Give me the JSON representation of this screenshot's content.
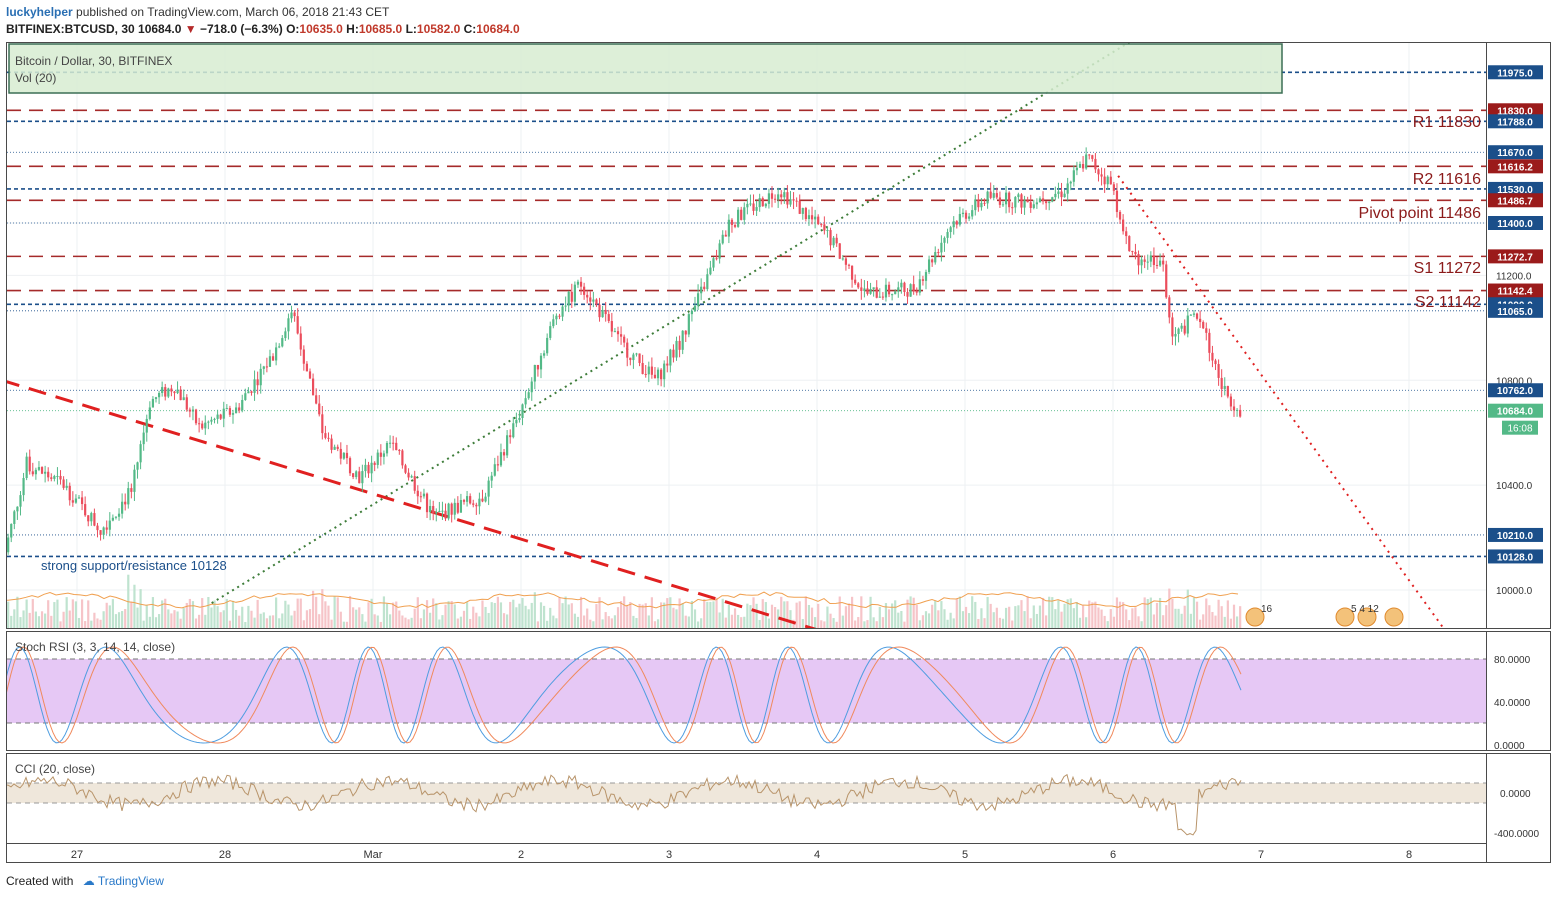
{
  "header": {
    "user": "luckyhelper",
    "published": "published on TradingView.com, March 06, 2018 21:43 CET",
    "symbol": "BITFINEX:BTCUSD, 30",
    "last": "10684.0",
    "change": "−718.0 (−6.3%)",
    "o_label": "O:",
    "o": "10635.0",
    "h_label": "H:",
    "h": "10685.0",
    "l_label": "L:",
    "l": "10582.0",
    "c_label": "C:",
    "c": "10684.0"
  },
  "legend": {
    "title": "Bitcoin / Dollar, 30, BITFINEX",
    "vol": "Vol (20)"
  },
  "annotations": {
    "r1": "R1 11830",
    "r2": "R2 11616",
    "pivot": "Pivot point 11486",
    "s1": "S1 11272",
    "s2": "S2 11142",
    "support": "strong support/resistance 10128",
    "event1": "16",
    "event2": "5 4 12",
    "countdown": "16:08"
  },
  "stoch": {
    "label": "Stoch RSI (3, 3, 14, 14, close)",
    "ticks": [
      "80.0000",
      "40.0000",
      "0.0000"
    ]
  },
  "cci": {
    "label": "CCI (20, close)",
    "ticks": [
      "0.0000",
      "-400.0000"
    ]
  },
  "footer": {
    "created": "Created with",
    "brand": "TradingView"
  },
  "colors": {
    "up": "#53b987",
    "down": "#eb4d5c",
    "resistance": "#a52a2a",
    "support": "#1b4f8a",
    "stoch_band": "#e6c8f5"
  },
  "chart_data": {
    "type": "candlestick",
    "title": "Bitcoin / Dollar, 30, BITFINEX",
    "x_ticks": [
      "27",
      "28",
      "Mar",
      "2",
      "3",
      "4",
      "5",
      "6",
      "7",
      "8"
    ],
    "y_ticks": [
      10000.0,
      10400.0,
      10800.0,
      11200.0,
      11400.0
    ],
    "price_axis_labels": [
      "11975.0",
      "11830.0",
      "11788.0",
      "11670.0",
      "11616.2",
      "11530.0",
      "11486.7",
      "11400.0",
      "11272.7",
      "11142.4",
      "11090.0",
      "11065.0",
      "10762.0",
      "10684.0",
      "10210.0",
      "10128.0"
    ],
    "pivot_levels": [
      {
        "name": "R1",
        "value": 11830.0
      },
      {
        "name": "R2",
        "value": 11616.2
      },
      {
        "name": "Pivot point",
        "value": 11486.7
      },
      {
        "name": "S1",
        "value": 11272.7
      },
      {
        "name": "S2",
        "value": 11142.4
      }
    ],
    "horizontal_levels": [
      11975.0,
      11788.0,
      11670.0,
      11530.0,
      11400.0,
      11090.0,
      11065.0,
      10762.0,
      10684.0,
      10210.0,
      10128.0
    ],
    "price_path": [
      {
        "t": "26 12:00",
        "p": 10100
      },
      {
        "t": "26 16:00",
        "p": 10480
      },
      {
        "t": "26 22:00",
        "p": 10400
      },
      {
        "t": "27 04:00",
        "p": 10230
      },
      {
        "t": "27 09:00",
        "p": 10380
      },
      {
        "t": "27 12:00",
        "p": 10720
      },
      {
        "t": "27 16:00",
        "p": 10780
      },
      {
        "t": "27 20:00",
        "p": 10620
      },
      {
        "t": "28 02:00",
        "p": 10690
      },
      {
        "t": "28 08:00",
        "p": 10900
      },
      {
        "t": "28 11:00",
        "p": 11070
      },
      {
        "t": "28 16:00",
        "p": 10600
      },
      {
        "t": "28 22:00",
        "p": 10430
      },
      {
        "t": "01 03:00",
        "p": 10560
      },
      {
        "t": "01 10:00",
        "p": 10280
      },
      {
        "t": "01 18:00",
        "p": 10360
      },
      {
        "t": "02 00:00",
        "p": 10680
      },
      {
        "t": "02 06:00",
        "p": 11060
      },
      {
        "t": "02 10:00",
        "p": 11170
      },
      {
        "t": "02 16:00",
        "p": 10950
      },
      {
        "t": "02 22:00",
        "p": 10800
      },
      {
        "t": "03 02:00",
        "p": 10950
      },
      {
        "t": "03 06:00",
        "p": 11170
      },
      {
        "t": "03 10:00",
        "p": 11400
      },
      {
        "t": "03 18:00",
        "p": 11530
      },
      {
        "t": "04 02:00",
        "p": 11350
      },
      {
        "t": "04 08:00",
        "p": 11130
      },
      {
        "t": "04 16:00",
        "p": 11150
      },
      {
        "t": "04 22:00",
        "p": 11400
      },
      {
        "t": "05 04:00",
        "p": 11500
      },
      {
        "t": "05 10:00",
        "p": 11480
      },
      {
        "t": "05 16:00",
        "p": 11520
      },
      {
        "t": "05 20:00",
        "p": 11650
      },
      {
        "t": "06 00:00",
        "p": 11540
      },
      {
        "t": "06 03:00",
        "p": 11270
      },
      {
        "t": "06 08:00",
        "p": 11260
      },
      {
        "t": "06 10:00",
        "p": 10960
      },
      {
        "t": "06 14:00",
        "p": 11060
      },
      {
        "t": "06 18:00",
        "p": 10760
      },
      {
        "t": "06 21:00",
        "p": 10684
      }
    ],
    "trendlines": [
      {
        "name": "rising support",
        "style": "dotted",
        "from": {
          "t": "27 22:00",
          "p": 9950
        },
        "to": {
          "t": "06 07:00",
          "p": 12150
        }
      },
      {
        "name": "falling resistance",
        "style": "dashed",
        "from": {
          "t": "26 12:00",
          "p": 10800
        },
        "to": {
          "t": "04 18:00",
          "p": 9720
        }
      },
      {
        "name": "descending",
        "style": "dotted",
        "from": {
          "t": "06 01:00",
          "p": 11580
        },
        "to": {
          "t": "08 12:00",
          "p": 9650
        }
      }
    ]
  }
}
